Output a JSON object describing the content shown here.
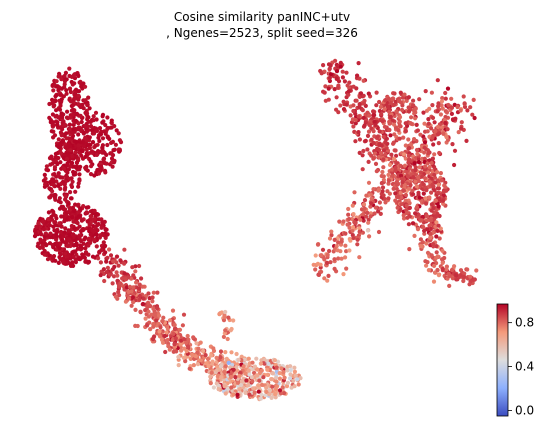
{
  "chart_data": {
    "type": "scatter",
    "title_line1": "Cosine similarity panINC+utv",
    "title_line2": ", Ngenes=2523, split seed=326",
    "xlabel": "",
    "ylabel": "",
    "axes_visible": false,
    "grid": false,
    "colormap": "coolwarm",
    "color_range": [
      -0.05,
      0.97
    ],
    "colorbar": {
      "position": "bottom-right",
      "ticks": [
        0.0,
        0.4,
        0.8
      ],
      "tick_labels": [
        "0.0",
        "0.4",
        "0.8"
      ]
    },
    "clusters": [
      {
        "label": "left-upper-lobe",
        "x": [
          0.08,
          0.22
        ],
        "y": [
          0.55,
          1.0
        ],
        "similarity": 0.96
      },
      {
        "label": "left-lower-lobe",
        "x": [
          0.02,
          0.2
        ],
        "y": [
          0.35,
          0.62
        ],
        "similarity": 0.96
      },
      {
        "label": "tail-upper",
        "x": [
          0.18,
          0.35
        ],
        "y": [
          0.15,
          0.45
        ],
        "similarity": 0.88
      },
      {
        "label": "tail-lower",
        "x": [
          0.33,
          0.6
        ],
        "y": [
          0.0,
          0.2
        ],
        "similarity": 0.72
      },
      {
        "label": "right-x-shape",
        "x": [
          0.58,
          0.95
        ],
        "y": [
          0.35,
          0.98
        ],
        "similarity": 0.86
      }
    ],
    "colors": {
      "cold": "#3b4cc0",
      "neutral": "#dddddd",
      "warm": "#b40426"
    }
  }
}
